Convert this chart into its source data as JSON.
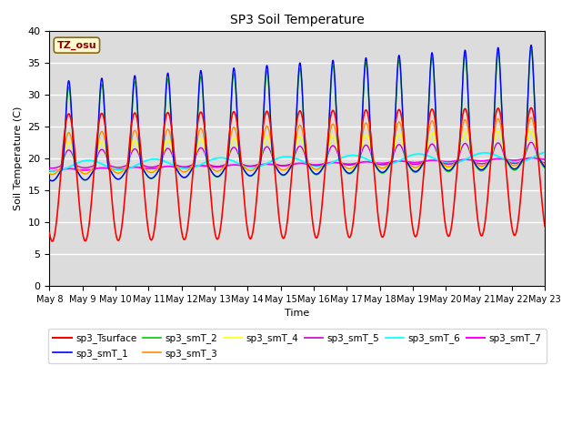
{
  "title": "SP3 Soil Temperature",
  "xlabel": "Time",
  "ylabel": "Soil Temperature (C)",
  "ylim": [
    0,
    40
  ],
  "annotation_text": "TZ_osu",
  "annotation_color": "#8B0000",
  "annotation_bg": "#FFFACD",
  "annotation_border": "#8B6914",
  "bg_color": "#DCDCDC",
  "fig_color": "#FFFFFF",
  "series_colors": {
    "sp3_Tsurface": "#FF0000",
    "sp3_smT_1": "#0000FF",
    "sp3_smT_2": "#00CC00",
    "sp3_smT_3": "#FF8C00",
    "sp3_smT_4": "#FFFF00",
    "sp3_smT_5": "#CC00CC",
    "sp3_smT_6": "#00FFFF",
    "sp3_smT_7": "#FF00FF"
  },
  "tick_labels": [
    "May 8",
    "May 9",
    "May 10",
    "May 11",
    "May 12",
    "May 13",
    "May 14",
    "May 15",
    "May 16",
    "May 17",
    "May 18",
    "May 19",
    "May 20",
    "May 21",
    "May 22",
    "May 23"
  ],
  "yticks": [
    0,
    5,
    10,
    15,
    20,
    25,
    30,
    35,
    40
  ],
  "n_days": 15
}
